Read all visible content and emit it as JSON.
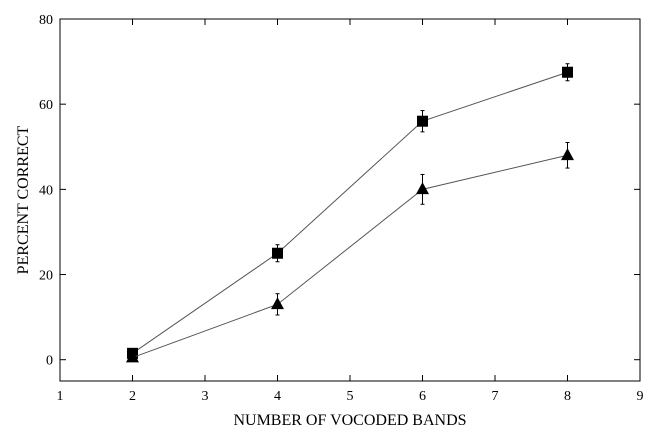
{
  "chart_data": {
    "type": "line",
    "title": "",
    "xlabel": "NUMBER OF VOCODED BANDS",
    "ylabel": "PERCENT CORRECT",
    "xlim": [
      1,
      9
    ],
    "ylim": [
      -5,
      80
    ],
    "x_ticks": [
      1,
      2,
      3,
      4,
      5,
      6,
      7,
      8,
      9
    ],
    "y_ticks": [
      0,
      20,
      40,
      60,
      80
    ],
    "grid": false,
    "legend": "none",
    "x_tick_labels": [
      "1",
      "2",
      "3",
      "4",
      "5",
      "6",
      "7",
      "8",
      "9"
    ],
    "y_tick_labels": [
      "0",
      "20",
      "40",
      "60",
      "80"
    ],
    "x": [
      2,
      4,
      6,
      8
    ],
    "series": [
      {
        "marker": "square",
        "color": "#000000",
        "line_color": "#555555",
        "values": [
          1.5,
          25,
          56,
          67.5
        ],
        "errors": [
          0,
          2,
          2.5,
          2
        ]
      },
      {
        "marker": "triangle",
        "color": "#000000",
        "line_color": "#555555",
        "values": [
          0.5,
          13,
          40,
          48
        ],
        "errors": [
          0,
          2.5,
          3.5,
          3
        ]
      }
    ]
  }
}
